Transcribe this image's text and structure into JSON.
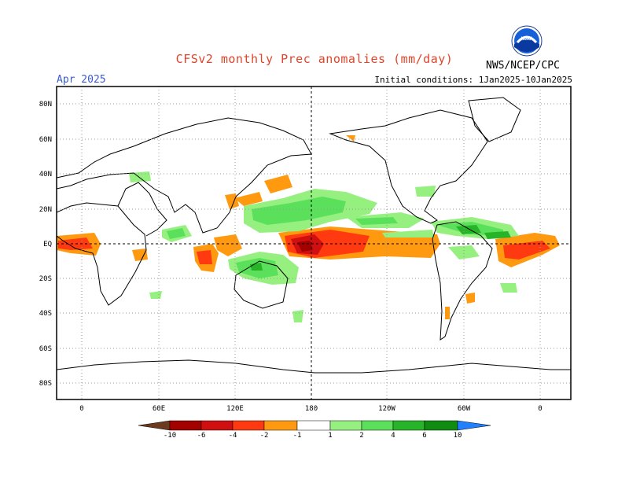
{
  "header": {
    "title": "CFSv2 monthly Prec anomalies (mm/day)",
    "month": "Apr 2025",
    "initial_conditions": "Initial conditions: 1Jan2025-10Jan2025",
    "agency": "NWS/NCEP/CPC",
    "logo_text": "NOAA"
  },
  "map": {
    "lat_labels": [
      "80N",
      "60N",
      "40N",
      "20N",
      "EQ",
      "20S",
      "40S",
      "60S",
      "80S"
    ],
    "lon_labels": [
      "0",
      "60E",
      "120E",
      "180",
      "120W",
      "60W",
      "0"
    ],
    "grid": "dotted",
    "projection": "cylindrical, centered 180"
  },
  "legend": {
    "tick_labels": [
      "-10",
      "-6",
      "-4",
      "-2",
      "-1",
      "1",
      "2",
      "4",
      "6",
      "10"
    ],
    "colors": {
      "lt_-10": "#6b3a1f",
      "-10_-6": "#a30000",
      "-6_-4": "#d01010",
      "-4_-2": "#ff3a10",
      "-2_-1": "#ff9a10",
      "-1_1": "#ffffff",
      "1_2": "#96f080",
      "2_4": "#5ae05a",
      "4_6": "#28b428",
      "6_10": "#108c10",
      "gt_10": "#2080ff"
    }
  }
}
